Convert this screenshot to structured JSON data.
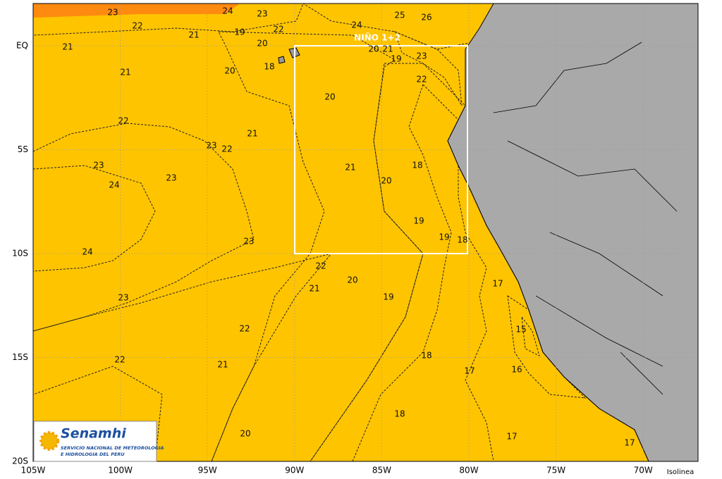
{
  "map": {
    "x_labels": [
      "105W",
      "100W",
      "95W",
      "90W",
      "85W",
      "80W",
      "75W",
      "70W"
    ],
    "y_labels": [
      "EQ",
      "5S",
      "10S",
      "15S",
      "20S"
    ],
    "region_label": "NIÑO 1+2",
    "legend_label": "Isolinea",
    "contour_labels": [
      23,
      24,
      23,
      25,
      26,
      22,
      21,
      22,
      24,
      19,
      20,
      21,
      20,
      21,
      23,
      19,
      18,
      21,
      20,
      22,
      20,
      22,
      21,
      23,
      22,
      23,
      21,
      18,
      23,
      20,
      24,
      19,
      19,
      18,
      23,
      24,
      22,
      20,
      21,
      17,
      23,
      19,
      22,
      15,
      22,
      18,
      21,
      17,
      16,
      18,
      20,
      17,
      17
    ]
  },
  "logo": {
    "name": "Senamhi",
    "line1": "SERVICIO NACIONAL DE METEOROLOGIA",
    "line2": "E HIDROLOGIA DEL PERU"
  }
}
